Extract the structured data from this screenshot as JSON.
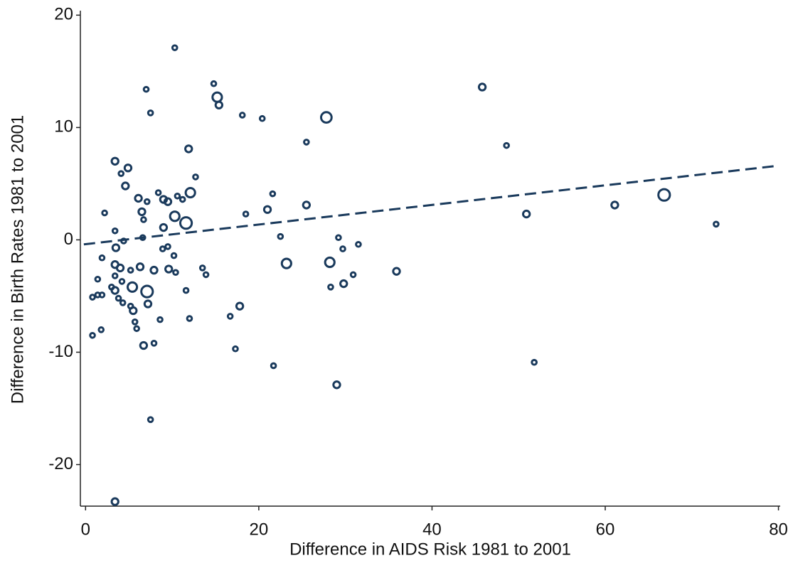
{
  "chart_data": {
    "type": "scatter",
    "xlabel": "Difference in AIDS Risk 1981 to 2001",
    "ylabel": "Difference in Birth Rates 1981 to 2001",
    "color": "#1a3a5c",
    "xlim": [
      -0.6,
      80.2
    ],
    "ylim": [
      -23.7,
      20.4
    ],
    "xticks": [
      0,
      20,
      40,
      60,
      80
    ],
    "yticks": [
      -20,
      -10,
      0,
      10,
      20
    ],
    "grid": false,
    "x": [
      10.3,
      14.8,
      15.2,
      15.4,
      7.0,
      7.5,
      18.1,
      20.4,
      27.8,
      45.8,
      25.5,
      48.6,
      11.9,
      3.4,
      4.9,
      4.1,
      4.6,
      12.7,
      12.1,
      8.4,
      10.6,
      9.0,
      9.5,
      11.2,
      6.1,
      7.1,
      21.6,
      25.5,
      21.0,
      18.5,
      2.2,
      6.5,
      6.7,
      10.3,
      11.6,
      9.0,
      3.4,
      6.6,
      22.5,
      29.2,
      50.9,
      61.1,
      66.8,
      72.8,
      4.4,
      3.5,
      8.9,
      9.5,
      29.7,
      31.5,
      1.9,
      10.2,
      3.4,
      4.0,
      6.3,
      7.9,
      9.6,
      10.4,
      5.2,
      13.5,
      13.9,
      23.2,
      28.2,
      35.9,
      30.9,
      3.4,
      1.4,
      4.2,
      29.8,
      28.3,
      5.4,
      3.4,
      3.0,
      7.1,
      11.6,
      0.8,
      1.4,
      1.9,
      3.8,
      4.3,
      7.2,
      5.2,
      5.5,
      17.8,
      12.0,
      16.7,
      8.6,
      5.7,
      5.9,
      0.8,
      1.8,
      6.7,
      7.9,
      17.3,
      21.7,
      51.8,
      29.0,
      7.5,
      3.4
    ],
    "values": [
      17.1,
      13.9,
      12.7,
      12.0,
      13.4,
      11.3,
      11.1,
      10.8,
      10.9,
      13.6,
      8.7,
      8.4,
      8.1,
      7.0,
      6.4,
      5.9,
      4.8,
      5.6,
      4.2,
      4.2,
      3.9,
      3.6,
      3.4,
      3.6,
      3.7,
      3.4,
      4.1,
      3.1,
      2.7,
      2.3,
      2.4,
      2.5,
      1.8,
      2.1,
      1.5,
      1.1,
      0.8,
      0.2,
      0.3,
      0.2,
      2.3,
      3.1,
      4.0,
      1.4,
      -0.1,
      -0.7,
      -0.8,
      -0.6,
      -0.8,
      -0.4,
      -1.6,
      -1.4,
      -2.2,
      -2.5,
      -2.4,
      -2.7,
      -2.6,
      -2.9,
      -2.7,
      -2.5,
      -3.1,
      -2.1,
      -2.0,
      -2.8,
      -3.1,
      -3.2,
      -3.5,
      -3.7,
      -3.9,
      -4.2,
      -4.2,
      -4.5,
      -4.2,
      -4.6,
      -4.5,
      -5.1,
      -4.9,
      -4.9,
      -5.2,
      -5.6,
      -5.7,
      -5.9,
      -6.3,
      -5.9,
      -7.0,
      -6.8,
      -7.1,
      -7.3,
      -7.9,
      -8.5,
      -8.0,
      -9.4,
      -9.2,
      -9.7,
      -11.2,
      -10.9,
      -12.9,
      -16.0,
      -23.3
    ],
    "sizes": [
      1,
      1,
      4,
      2,
      1,
      1,
      1,
      1,
      5,
      2,
      1,
      1,
      2,
      2,
      2,
      1,
      2,
      1,
      4,
      1,
      1,
      2,
      2,
      1,
      2,
      1,
      1,
      2,
      2,
      1,
      1,
      2,
      1,
      4,
      6,
      2,
      1,
      1,
      1,
      1,
      2,
      2,
      6,
      1,
      1,
      2,
      1,
      1,
      1,
      1,
      1,
      1,
      2,
      2,
      2,
      2,
      2,
      1,
      1,
      1,
      1,
      4,
      4,
      2,
      1,
      1,
      1,
      1,
      2,
      1,
      4,
      2,
      1,
      6,
      1,
      1,
      1,
      1,
      1,
      1,
      2,
      1,
      2,
      2,
      1,
      1,
      1,
      1,
      1,
      1,
      1,
      2,
      1,
      1,
      1,
      1,
      2,
      1,
      2
    ],
    "fit": {
      "x": [
        -0.2,
        80
      ],
      "values": [
        -0.4,
        6.6
      ]
    }
  }
}
